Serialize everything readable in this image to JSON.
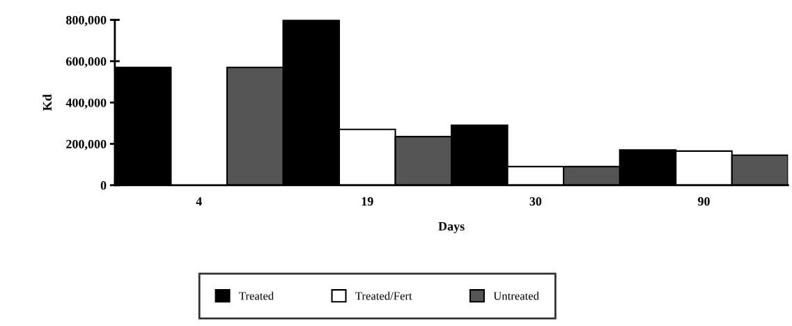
{
  "chart_data": {
    "type": "bar",
    "xlabel": "Days",
    "ylabel": "Kd",
    "categories": [
      "4",
      "19",
      "30",
      "90"
    ],
    "series": [
      {
        "name": "Treated",
        "color": "#000000",
        "values": [
          570000,
          800000,
          290000,
          170000
        ]
      },
      {
        "name": "Treated/Fert",
        "color": "#ffffff",
        "values": [
          null,
          270000,
          90000,
          165000
        ]
      },
      {
        "name": "Untreated",
        "color": "#555555",
        "values": [
          570000,
          235000,
          90000,
          145000
        ]
      }
    ],
    "ylim": [
      0,
      800000
    ],
    "yticks": [
      {
        "value": 0,
        "label": "0"
      },
      {
        "value": 200000,
        "label": "200,000"
      },
      {
        "value": 400000,
        "label": "400,000"
      },
      {
        "value": 600000,
        "label": "600,000"
      },
      {
        "value": 800000,
        "label": "800,000"
      }
    ],
    "grid": false,
    "legend": "bottom"
  }
}
